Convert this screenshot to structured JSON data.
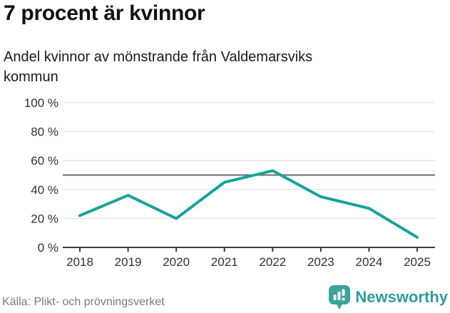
{
  "header": {
    "title": "7 procent är kvinnor",
    "subtitle": "Andel kvinnor av mönstrande från Valdemarsviks kommun"
  },
  "chart_data": {
    "type": "line",
    "title": "7 procent är kvinnor",
    "subtitle": "Andel kvinnor av mönstrande från Valdemarsviks kommun",
    "categories": [
      "2018",
      "2019",
      "2020",
      "2021",
      "2022",
      "2023",
      "2024",
      "2025"
    ],
    "series": [
      {
        "name": "Andel kvinnor av mönstrande från Valdemarsviks kommun",
        "values": [
          22,
          36,
          20,
          45,
          53,
          35,
          27,
          7
        ]
      }
    ],
    "unit": "%",
    "ylim": [
      0,
      100
    ],
    "yticks": [
      {
        "value": 0,
        "label": "0 %"
      },
      {
        "value": 20,
        "label": "20 %"
      },
      {
        "value": 40,
        "label": "40 %"
      },
      {
        "value": 60,
        "label": "60 %"
      },
      {
        "value": 80,
        "label": "80 %"
      },
      {
        "value": 100,
        "label": "100 %"
      }
    ],
    "reference_line": {
      "value": 50
    },
    "grid": true,
    "legend_position": "none",
    "line_color": "#18a19b"
  },
  "footer": {
    "source": "Källa: Plikt- och prövningsverket",
    "brand": "Newsworthy"
  },
  "colors": {
    "accent": "#18a19b",
    "brand": "#2f9d97",
    "grid": "#dcdcdc",
    "axis": "#3a3a3a",
    "reference": "#6b6b6b",
    "tick_text": "#303030",
    "title_text": "#111111",
    "muted_text": "#7a7a7a"
  }
}
